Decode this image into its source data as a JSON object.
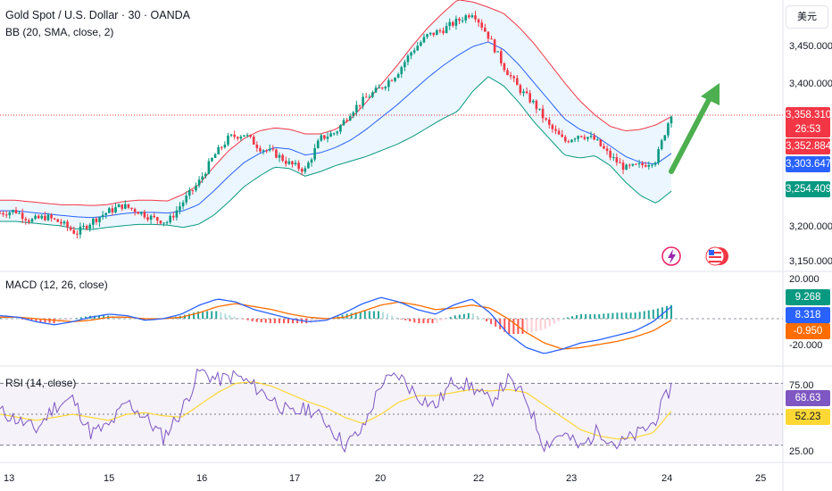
{
  "header": {
    "title": "Gold Spot / U.S. Dollar · 30 · OANDA",
    "bb_label": "BB (20, SMA, close, 2)",
    "currency": "美元"
  },
  "macd_label": "MACD (12, 26, close)",
  "rsi_label": "RSI (14, close)",
  "price_axis": [
    "3,450.000",
    "3,400.000",
    "3,200.000",
    "3,150.000"
  ],
  "price_tags": {
    "last": "3,358.310",
    "countdown": "26:53",
    "bb_upper": "3,352.884",
    "bb_basis": "3,303.647",
    "bb_lower": "3,254.409"
  },
  "macd_axis": [
    "20.000",
    "-20.000"
  ],
  "macd_tags": {
    "hist": "9.268",
    "macd": "8.318",
    "signal": "-0.950"
  },
  "rsi_axis": [
    "75.00",
    "25.00"
  ],
  "rsi_tags": {
    "rsi": "68.63",
    "ma": "52.23"
  },
  "x_labels": [
    "13",
    "15",
    "16",
    "17",
    "20",
    "22",
    "23",
    "24",
    "25"
  ],
  "icons": [
    "lightning-icon",
    "us-flag-icon"
  ],
  "colors": {
    "up": "#089981",
    "down": "#f23645",
    "bb_upper": "#f23645",
    "bb_basis": "#2962ff",
    "bb_lower": "#089981",
    "macd": "#2962ff",
    "signal": "#ff6d00",
    "rsi": "#7e57c2",
    "rsi_ma": "#fdd835",
    "arrow": "#4caf50"
  },
  "chart_data": [
    {
      "type": "candlestick",
      "title": "Gold Spot / U.S. Dollar · 30 · OANDA",
      "ylim": [
        3150,
        3510
      ],
      "x": [
        "13",
        "15",
        "16",
        "17",
        "20",
        "22",
        "23",
        "24",
        "25"
      ],
      "anchors": {
        "close": [
          3225,
          3228,
          3215,
          3220,
          3212,
          3198,
          3214,
          3226,
          3235,
          3228,
          3218,
          3213,
          3240,
          3265,
          3300,
          3325,
          3330,
          3312,
          3304,
          3290,
          3282,
          3324,
          3332,
          3360,
          3378,
          3392,
          3410,
          3440,
          3460,
          3468,
          3480,
          3492,
          3460,
          3420,
          3390,
          3370,
          3340,
          3320,
          3330,
          3322,
          3300,
          3284,
          3288,
          3296,
          3358
        ],
        "bb_basis": [
          3228,
          3228,
          3226,
          3224,
          3222,
          3220,
          3219,
          3221,
          3224,
          3226,
          3226,
          3225,
          3228,
          3236,
          3254,
          3274,
          3292,
          3304,
          3312,
          3310,
          3302,
          3305,
          3312,
          3322,
          3336,
          3352,
          3368,
          3386,
          3404,
          3420,
          3434,
          3446,
          3452,
          3442,
          3422,
          3398,
          3374,
          3350,
          3336,
          3328,
          3314,
          3300,
          3292,
          3290,
          3304
        ],
        "bb_upper": [
          3242,
          3242,
          3240,
          3238,
          3236,
          3236,
          3235,
          3236,
          3240,
          3242,
          3242,
          3241,
          3250,
          3262,
          3286,
          3308,
          3324,
          3334,
          3338,
          3336,
          3330,
          3330,
          3336,
          3350,
          3372,
          3396,
          3420,
          3446,
          3470,
          3490,
          3508,
          3505,
          3498,
          3490,
          3472,
          3450,
          3424,
          3398,
          3374,
          3355,
          3340,
          3334,
          3336,
          3342,
          3353
        ],
        "bb_lower": [
          3214,
          3214,
          3212,
          3210,
          3208,
          3204,
          3203,
          3206,
          3208,
          3210,
          3210,
          3209,
          3206,
          3210,
          3222,
          3240,
          3260,
          3274,
          3286,
          3284,
          3274,
          3280,
          3288,
          3294,
          3300,
          3308,
          3316,
          3326,
          3338,
          3350,
          3360,
          3387,
          3406,
          3394,
          3372,
          3346,
          3324,
          3302,
          3298,
          3301,
          3288,
          3266,
          3248,
          3238,
          3254
        ]
      },
      "last": 3358.31,
      "bb": {
        "basis": 3303.647,
        "upper": 3352.884,
        "lower": 3254.409
      }
    },
    {
      "type": "line",
      "title": "MACD (12, 26, close)",
      "ylim": [
        -30,
        30
      ],
      "series": [
        {
          "name": "MACD",
          "values": [
            2,
            1,
            -2,
            -4,
            -2,
            1,
            3,
            2,
            -1,
            0,
            3,
            9,
            13,
            11,
            6,
            3,
            0,
            -2,
            -1,
            4,
            10,
            14,
            11,
            6,
            3,
            9,
            13,
            4,
            -10,
            -19,
            -23,
            -20,
            -16,
            -14,
            -11,
            -8,
            -2,
            8
          ]
        },
        {
          "name": "Signal",
          "values": [
            1,
            1,
            0,
            -1,
            -2,
            -1,
            1,
            1,
            0,
            0,
            1,
            4,
            8,
            10,
            8,
            6,
            3,
            1,
            0,
            1,
            5,
            9,
            11,
            9,
            6,
            7,
            9,
            7,
            0,
            -9,
            -16,
            -20,
            -19,
            -17,
            -15,
            -12,
            -8,
            -1
          ]
        },
        {
          "name": "Histogram",
          "values": [
            1,
            0,
            -2,
            -3,
            0,
            2,
            2,
            1,
            -1,
            0,
            2,
            5,
            5,
            1,
            -2,
            -3,
            -3,
            -3,
            -1,
            3,
            5,
            5,
            0,
            -3,
            -3,
            2,
            4,
            -3,
            -10,
            -10,
            -7,
            0,
            3,
            3,
            4,
            4,
            6,
            9
          ]
        }
      ],
      "last": {
        "hist": 9.268,
        "macd": 8.318,
        "signal": -0.95
      }
    },
    {
      "type": "line",
      "title": "RSI (14, close)",
      "ylim": [
        20,
        80
      ],
      "levels": [
        70,
        50,
        30
      ],
      "series": [
        {
          "name": "RSI",
          "values": [
            52,
            46,
            40,
            55,
            60,
            38,
            42,
            58,
            48,
            35,
            52,
            78,
            72,
            75,
            68,
            60,
            50,
            54,
            45,
            30,
            40,
            70,
            75,
            62,
            55,
            72,
            68,
            58,
            72,
            60,
            30,
            38,
            28,
            40,
            30,
            36,
            44,
            68
          ]
        },
        {
          "name": "RSI MA",
          "values": [
            50,
            48,
            46,
            48,
            50,
            48,
            46,
            50,
            51,
            49,
            48,
            56,
            64,
            70,
            71,
            68,
            63,
            58,
            54,
            48,
            44,
            50,
            58,
            62,
            62,
            64,
            66,
            65,
            66,
            64,
            56,
            48,
            40,
            36,
            34,
            35,
            38,
            52
          ]
        }
      ],
      "last": {
        "rsi": 68.63,
        "ma": 52.23
      }
    }
  ]
}
